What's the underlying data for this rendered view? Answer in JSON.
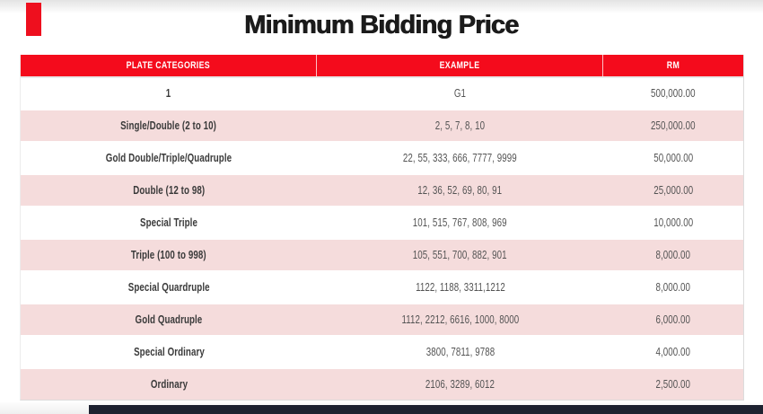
{
  "page": {
    "title": "Minimum Bidding Price"
  },
  "table": {
    "headers": [
      "PLATE CATEGORIES",
      "EXAMPLE",
      "RM"
    ],
    "rows": [
      {
        "category": "1",
        "example": "G1",
        "rm": "500,000.00"
      },
      {
        "category": "Single/Double (2 to 10)",
        "example": "2, 5, 7, 8, 10",
        "rm": "250,000.00"
      },
      {
        "category": "Gold Double/Triple/Quadruple",
        "example": "22, 55, 333, 666, 7777, 9999",
        "rm": "50,000.00"
      },
      {
        "category": "Double (12 to 98)",
        "example": "12, 36, 52, 69, 80, 91",
        "rm": "25,000.00"
      },
      {
        "category": "Special Triple",
        "example": "101, 515, 767, 808, 969",
        "rm": "10,000.00"
      },
      {
        "category": "Triple (100 to 998)",
        "example": "105, 551, 700, 882, 901",
        "rm": "8,000.00"
      },
      {
        "category": "Special Quardruple",
        "example": "1122, 1188, 3311,1212",
        "rm": "8,000.00"
      },
      {
        "category": "Gold Quadruple",
        "example": "1112, 2212, 6616, 1000, 8000",
        "rm": "6,000.00"
      },
      {
        "category": "Special Ordinary",
        "example": "3800, 7811, 9788",
        "rm": "4,000.00"
      },
      {
        "category": "Ordinary",
        "example": "2106, 3289, 6012",
        "rm": "2,500.00"
      }
    ]
  },
  "colors": {
    "header_red": "#f40b1c",
    "accent_red": "#ee0f1e",
    "row_pink": "#f5dcdc",
    "bottom_bar_navy": "#1d2130",
    "title_text": "#1b1b1b"
  }
}
